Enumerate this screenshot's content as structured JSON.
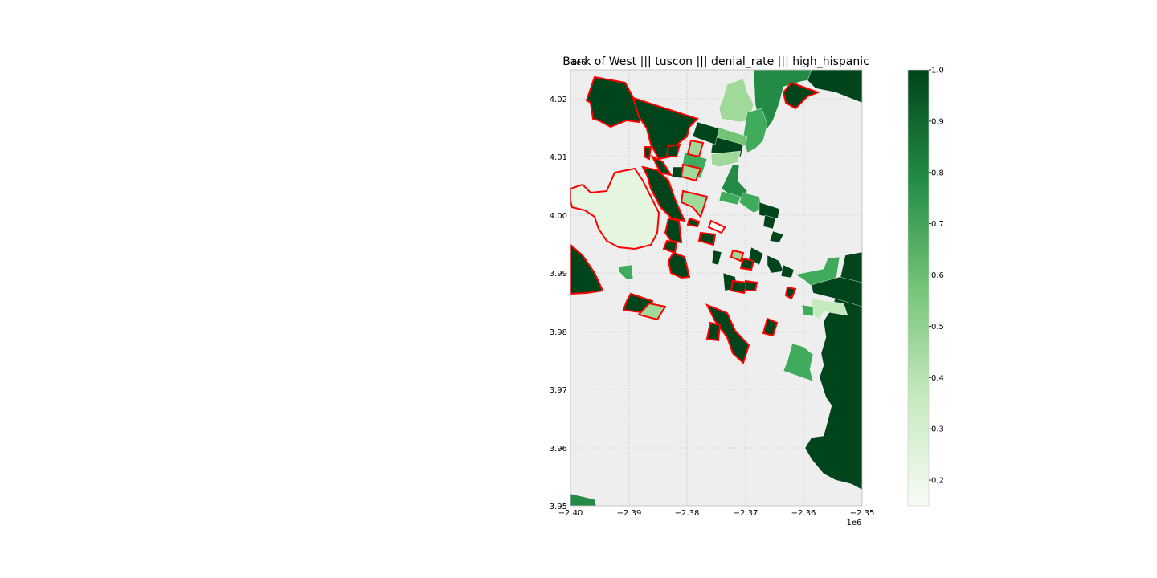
{
  "chart_data": {
    "type": "choropleth",
    "title": "Bank of West ||| tuscon ||| denial_rate ||| high_hispanic",
    "x_ticks": [
      "−2.40",
      "−2.39",
      "−2.38",
      "−2.37",
      "−2.36",
      "−2.35"
    ],
    "y_ticks": [
      "4.02",
      "4.01",
      "4.00",
      "3.99",
      "3.98",
      "3.97",
      "3.96",
      "3.95"
    ],
    "x_offset_label": "1e6",
    "y_offset_label": "1e6",
    "xlim": [
      -2.4,
      -2.35
    ],
    "ylim": [
      3.95,
      4.025
    ],
    "grid": true,
    "colorbar": {
      "range": [
        0.15,
        1.0
      ],
      "ticks": [
        "0.2",
        "0.3",
        "0.4",
        "0.5",
        "0.6",
        "0.7",
        "0.8",
        "0.9",
        "1.0"
      ],
      "tick_values": [
        0.2,
        0.3,
        0.4,
        0.5,
        0.6,
        0.7,
        0.8,
        0.9,
        1.0
      ],
      "colormap": "Greens"
    },
    "highlight_color": "#ff0000",
    "background_color": "#eeeeee"
  }
}
